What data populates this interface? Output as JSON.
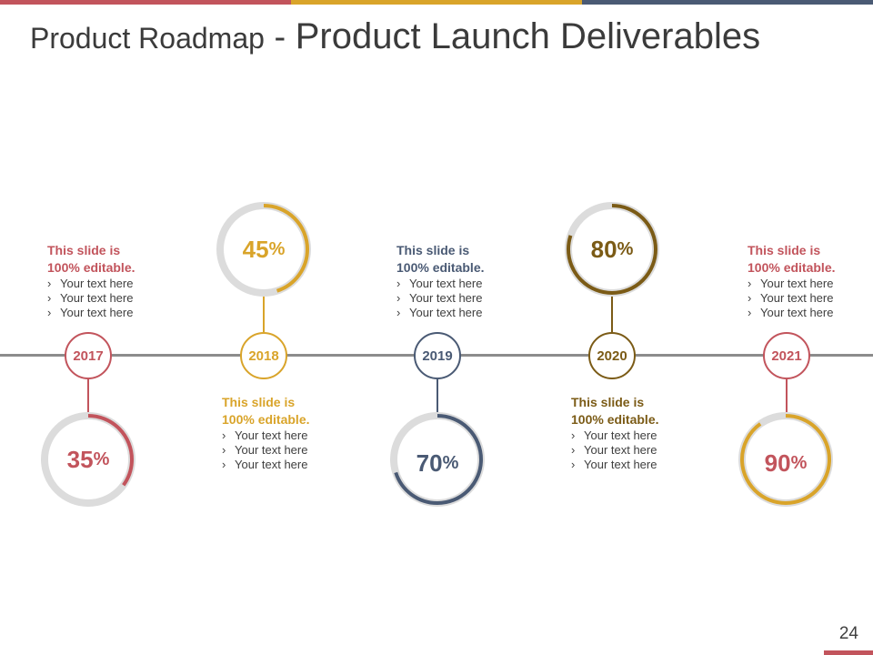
{
  "colors": {
    "red": "#c2545c",
    "gold": "#d9a42a",
    "navy": "#4a5a74",
    "brown": "#7b5b16",
    "track": "#dcdcdc",
    "line": "#8c8c8c",
    "topbar_1": "#c2545c",
    "topbar_2": "#d9a42a",
    "topbar_3": "#4a5a74"
  },
  "title": {
    "part1": "Product Roadmap",
    "separator": " - ",
    "part2": "Product Launch Deliverables"
  },
  "page_number": "24",
  "milestones": [
    {
      "year": "2017",
      "percent": "35",
      "percent_value": 0.35,
      "percent_symbol": "%",
      "color": "#c2545c",
      "heading_line1": "This slide is",
      "heading_line2": "100% editable.",
      "bullets": [
        "Your text here",
        "Your text here",
        "Your text here"
      ]
    },
    {
      "year": "2018",
      "percent": "45",
      "percent_value": 0.45,
      "percent_symbol": "%",
      "color": "#d9a42a",
      "heading_line1": "This slide is",
      "heading_line2": "100% editable.",
      "bullets": [
        "Your text here",
        "Your text here",
        "Your text here"
      ]
    },
    {
      "year": "2019",
      "percent": "70",
      "percent_value": 0.7,
      "percent_symbol": "%",
      "color": "#4a5a74",
      "heading_line1": "This slide is",
      "heading_line2": "100% editable.",
      "bullets": [
        "Your text here",
        "Your text here",
        "Your text here"
      ]
    },
    {
      "year": "2020",
      "percent": "80",
      "percent_value": 0.8,
      "percent_symbol": "%",
      "color": "#7b5b16",
      "heading_line1": "This slide is",
      "heading_line2": "100% editable.",
      "bullets": [
        "Your text here",
        "Your text here",
        "Your text here"
      ]
    },
    {
      "year": "2021",
      "percent": "90",
      "percent_value": 0.9,
      "percent_symbol": "%",
      "color": "#d9a42a",
      "heading_line1": "This slide is",
      "heading_line2": "100% editable.",
      "bullets": [
        "Your text here",
        "Your text here",
        "Your text here"
      ]
    }
  ]
}
